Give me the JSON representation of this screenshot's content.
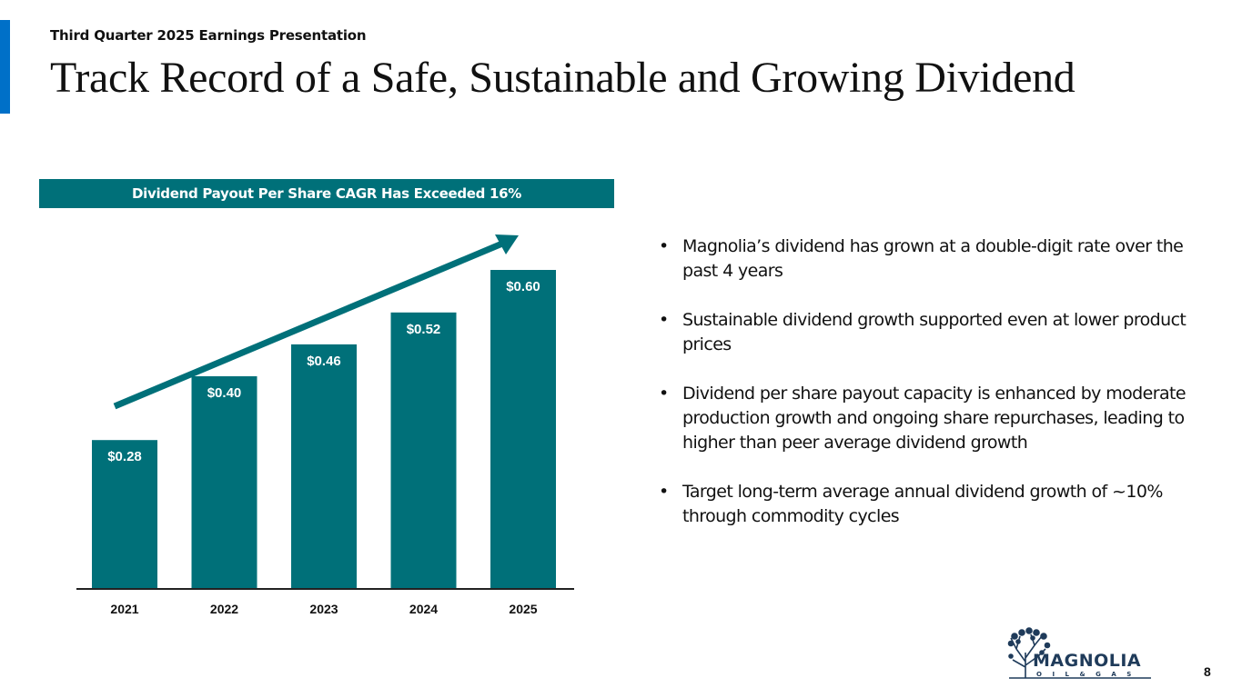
{
  "header": {
    "subtitle": "Third Quarter 2025 Earnings Presentation",
    "title": "Track Record of a Safe, Sustainable and Growing Dividend",
    "accent_color": "#0070c8"
  },
  "banner": {
    "text": "Dividend Payout Per Share CAGR Has Exceeded 16%",
    "color": "#007079"
  },
  "chart_data": {
    "type": "bar",
    "title": "Dividend Payout Per Share CAGR Has Exceeded 16%",
    "categories": [
      "2021",
      "2022",
      "2023",
      "2024",
      "2025"
    ],
    "values": [
      0.28,
      0.4,
      0.46,
      0.52,
      0.6
    ],
    "data_labels": [
      "$0.28",
      "$0.40",
      "$0.46",
      "$0.52",
      "$0.60"
    ],
    "xlabel": "",
    "ylabel": "",
    "ylim": [
      0,
      0.7
    ],
    "grid": false,
    "legend": "none",
    "bar_color": "#007079",
    "annotations": [
      {
        "type": "trend-arrow",
        "direction": "up-right",
        "from": "2021",
        "to": "2025"
      }
    ]
  },
  "bullets": [
    "Magnolia’s dividend has grown at a double-digit rate over the past 4 years",
    "Sustainable dividend growth supported even at lower product prices",
    "Dividend per share payout capacity is enhanced by moderate production growth and ongoing share repurchases, leading to higher than peer average dividend growth",
    "Target long-term average annual dividend growth of ~10% through commodity cycles"
  ],
  "bullet_symbol": "•",
  "footer": {
    "logo_name": "MAGNOLIA",
    "logo_sub": "OIL & GAS",
    "logo_icon": "tree-icon",
    "page_number": "8"
  }
}
